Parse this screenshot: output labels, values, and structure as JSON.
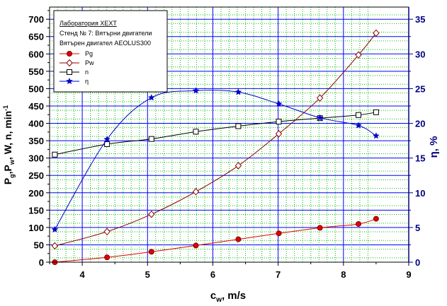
{
  "chart_data": {
    "type": "line",
    "title": "",
    "xlabel": {
      "main": "c",
      "sub": "w",
      "rest": ", m/s"
    },
    "ylabel_left": {
      "parts": [
        "P",
        "g",
        ",P",
        "w",
        ", W, n, min",
        "-1"
      ]
    },
    "ylabel_right": {
      "main": "η",
      "rest": ", %"
    },
    "xlim": [
      3.5,
      9
    ],
    "ylim_left": [
      0,
      735
    ],
    "ylim_right": [
      0,
      36.75
    ],
    "x_ticks": [
      4,
      5,
      6,
      7,
      8,
      9
    ],
    "y_ticks_left": [
      0,
      50,
      100,
      150,
      200,
      250,
      300,
      350,
      400,
      450,
      500,
      550,
      600,
      650,
      700
    ],
    "y_ticks_right": [
      0,
      5,
      10,
      15,
      20,
      25,
      30,
      35
    ],
    "grid": true,
    "legend": {
      "placement": "top-left",
      "header": [
        "Лаборатория ХЕХТ",
        "Стенд № 7: Вятърни двигатели",
        "Вятърен двигател AEOLUS300"
      ]
    },
    "colors": {
      "grid_major": "#0000ff",
      "grid_minor": "#00c000",
      "left_axis": "#000000",
      "right_axis": "#000080",
      "pg": "#e00000",
      "pw": "#8b0000",
      "n": "#000000",
      "eta": "#0000cd"
    },
    "series": [
      {
        "name": "Pg",
        "axis": "left",
        "marker": "filled-circle",
        "x": [
          3.58,
          4.38,
          5.06,
          5.74,
          6.39,
          7.01,
          7.64,
          8.23,
          8.5
        ],
        "y": [
          0,
          14,
          30,
          48,
          66,
          83,
          99,
          110,
          125
        ]
      },
      {
        "name": "Pw",
        "axis": "left",
        "marker": "diamond",
        "x": [
          3.58,
          4.38,
          5.06,
          5.74,
          6.39,
          7.01,
          7.64,
          8.23,
          8.5
        ],
        "y": [
          47,
          88,
          138,
          203,
          278,
          370,
          473,
          597,
          660
        ]
      },
      {
        "name": "n",
        "axis": "left",
        "marker": "square",
        "x": [
          3.58,
          4.38,
          5.06,
          5.74,
          6.39,
          7.01,
          7.64,
          8.23,
          8.5
        ],
        "y": [
          310,
          340,
          355,
          376,
          392,
          405,
          415,
          424,
          432
        ]
      },
      {
        "name": "η",
        "axis": "right",
        "marker": "star",
        "x": [
          3.58,
          4.38,
          5.06,
          5.74,
          6.39,
          7.01,
          7.64,
          8.23,
          8.5
        ],
        "y": [
          4.7,
          17.7,
          23.7,
          24.7,
          24.5,
          22.8,
          20.8,
          19.7,
          18.2
        ]
      }
    ]
  }
}
